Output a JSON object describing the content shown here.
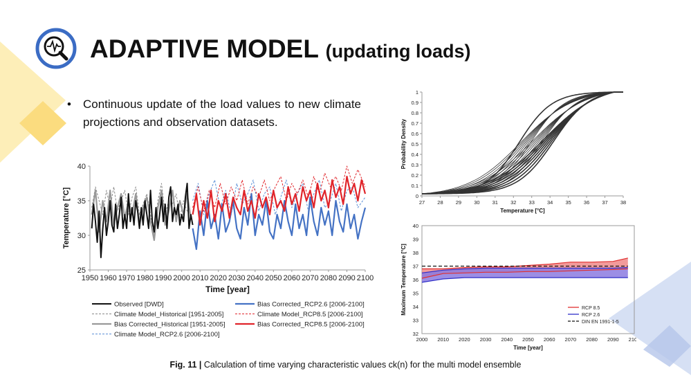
{
  "header": {
    "title": "ADAPTIVE MODEL",
    "subtitle": "(updating loads)",
    "icon": "magnifier-chart-icon",
    "accent": "#3b6cc4"
  },
  "bullet": {
    "marker": "•",
    "text": "Continuous update of the load values to new climate projections and observation datasets."
  },
  "caption": {
    "label": "Fig. 11 |",
    "text": "Calculation of time varying characteristic values ck(n) for the multi model ensemble"
  },
  "chart_data": [
    {
      "type": "line",
      "xlabel": "Time [year]",
      "ylabel": "Temperature [°C]",
      "xlim": [
        1950,
        2100
      ],
      "ylim": [
        25,
        40
      ],
      "xticks": [
        "1950",
        "1960",
        "1970",
        "1980",
        "1990",
        "2000",
        "2010",
        "2020",
        "2030",
        "2040",
        "2050",
        "2060",
        "2070",
        "2080",
        "2090",
        "2100"
      ],
      "yticks": [
        "25",
        "30",
        "35",
        "40"
      ],
      "legend_position": "bottom",
      "series": [
        {
          "name": "Observed [DWD]",
          "color": "#111111",
          "style": "solid",
          "width": 2,
          "x": [
            1951,
            1952,
            1953,
            1954,
            1955,
            1956,
            1957,
            1958,
            1959,
            1960,
            1961,
            1962,
            1963,
            1964,
            1965,
            1966,
            1967,
            1968,
            1969,
            1970,
            1971,
            1972,
            1973,
            1974,
            1975,
            1976,
            1977,
            1978,
            1979,
            1980,
            1981,
            1982,
            1983,
            1984,
            1985,
            1986,
            1987,
            1988,
            1989,
            1990,
            1991,
            1992,
            1993,
            1994,
            1995,
            1996,
            1997,
            1998,
            1999,
            2000,
            2001,
            2002,
            2003,
            2004,
            2005,
            2006
          ],
          "y": [
            31,
            34.5,
            32,
            29,
            33.5,
            26.8,
            31,
            34,
            30,
            32,
            35,
            31.5,
            30.5,
            34.5,
            31,
            33,
            35.5,
            31,
            33,
            31,
            36,
            32,
            34,
            31.5,
            35,
            33.5,
            31,
            34,
            31.5,
            35,
            33,
            31,
            36.5,
            32,
            30.5,
            34,
            31,
            33,
            35.5,
            32,
            34.5,
            31,
            35.5,
            37,
            32,
            34,
            33,
            34.5,
            31.5,
            33,
            32,
            35.5,
            37.5,
            31,
            33,
            31.5
          ]
        },
        {
          "name": "Climate Model_Historical [1951-2005]",
          "color": "#888888",
          "style": "dashed",
          "width": 1,
          "x": [
            1951,
            1953,
            1955,
            1957,
            1959,
            1961,
            1963,
            1965,
            1967,
            1969,
            1971,
            1973,
            1975,
            1977,
            1979,
            1981,
            1983,
            1985,
            1987,
            1989,
            1991,
            1993,
            1995,
            1997,
            1999,
            2001,
            2003,
            2005
          ],
          "y": [
            34,
            37,
            35,
            33,
            36.5,
            34,
            37,
            33.5,
            35,
            36.5,
            33,
            35.5,
            37,
            33,
            34.5,
            36,
            33,
            30,
            35,
            37.5,
            33,
            35,
            34.5,
            36,
            32.5,
            35,
            33.5,
            34
          ]
        },
        {
          "name": "Bias Corrected_Historical [1951-2005]",
          "color": "#999999",
          "style": "solid",
          "width": 2.2,
          "x": [
            1951,
            1953,
            1955,
            1957,
            1959,
            1961,
            1963,
            1965,
            1967,
            1969,
            1971,
            1973,
            1975,
            1977,
            1979,
            1981,
            1983,
            1985,
            1987,
            1989,
            1991,
            1993,
            1995,
            1997,
            1999,
            2001,
            2003,
            2005
          ],
          "y": [
            33,
            36.5,
            30.5,
            35,
            32,
            36.5,
            31.5,
            34,
            36,
            32.5,
            35,
            33,
            36,
            31.5,
            34,
            35.5,
            32,
            29.3,
            34,
            36.5,
            31.5,
            33.5,
            36.5,
            32,
            35,
            33,
            36,
            32.5
          ]
        },
        {
          "name": "Climate Model_RCP2.6 [2006-2100]",
          "color": "#5b8fd6",
          "style": "dashed",
          "width": 1,
          "x": [
            2006,
            2009,
            2012,
            2015,
            2018,
            2021,
            2024,
            2027,
            2030,
            2033,
            2036,
            2039,
            2042,
            2045,
            2048,
            2051,
            2054,
            2057,
            2060,
            2063,
            2066,
            2069,
            2072,
            2075,
            2078,
            2081,
            2084,
            2087,
            2090,
            2093,
            2096,
            2100
          ],
          "y": [
            35,
            37.5,
            33,
            36,
            38,
            34,
            36.5,
            33,
            37.5,
            34.5,
            36,
            38,
            33.5,
            36,
            37,
            33,
            35.5,
            38,
            34,
            36,
            37.5,
            33.5,
            36,
            38,
            34,
            35,
            37.5,
            33.5,
            36.5,
            37,
            34,
            35.5
          ]
        },
        {
          "name": "Bias Corrected_RCP2.6 [2006-2100]",
          "color": "#4472c4",
          "style": "solid",
          "width": 2.2,
          "x": [
            2006,
            2008,
            2010,
            2012,
            2014,
            2016,
            2018,
            2020,
            2022,
            2024,
            2026,
            2028,
            2030,
            2032,
            2034,
            2036,
            2038,
            2040,
            2042,
            2044,
            2046,
            2048,
            2050,
            2052,
            2054,
            2056,
            2058,
            2060,
            2062,
            2064,
            2066,
            2068,
            2070,
            2072,
            2074,
            2076,
            2078,
            2080,
            2082,
            2084,
            2086,
            2088,
            2090,
            2092,
            2094,
            2096,
            2098,
            2100
          ],
          "y": [
            31,
            28,
            33.5,
            30,
            35,
            31,
            33,
            29.5,
            34.5,
            30.5,
            32,
            35,
            31,
            29.5,
            34,
            31.5,
            36,
            30,
            33,
            31.5,
            35,
            30.5,
            29.5,
            33,
            31,
            35,
            32,
            30,
            34.5,
            31,
            33,
            30,
            35.5,
            32,
            30,
            34,
            31.5,
            33.5,
            30,
            35,
            32,
            30.5,
            34.5,
            31,
            33,
            29.5,
            32,
            34
          ]
        },
        {
          "name": "Climate Model_RCP8.5 [2006-2100]",
          "color": "#e0242a",
          "style": "dashed",
          "width": 1,
          "x": [
            2006,
            2009,
            2012,
            2015,
            2018,
            2021,
            2024,
            2027,
            2030,
            2033,
            2036,
            2039,
            2042,
            2045,
            2048,
            2051,
            2054,
            2057,
            2060,
            2063,
            2066,
            2069,
            2072,
            2075,
            2078,
            2081,
            2084,
            2087,
            2090,
            2093,
            2096,
            2100
          ],
          "y": [
            34,
            37,
            33.5,
            36.5,
            34,
            37.5,
            34.5,
            37,
            35,
            38,
            34.5,
            37,
            35.5,
            38,
            35,
            37,
            38.5,
            35,
            37.5,
            36,
            38,
            35.5,
            38.5,
            36,
            39,
            37,
            38.5,
            36.5,
            40,
            37.5,
            39.5,
            37
          ]
        },
        {
          "name": "Bias Corrected_RCP8.5 [2006-2100]",
          "color": "#e0242a",
          "style": "solid",
          "width": 2.2,
          "x": [
            2006,
            2008,
            2010,
            2012,
            2014,
            2016,
            2018,
            2020,
            2022,
            2024,
            2026,
            2028,
            2030,
            2032,
            2034,
            2036,
            2038,
            2040,
            2042,
            2044,
            2046,
            2048,
            2050,
            2052,
            2054,
            2056,
            2058,
            2060,
            2062,
            2064,
            2066,
            2068,
            2070,
            2072,
            2074,
            2076,
            2078,
            2080,
            2082,
            2084,
            2086,
            2088,
            2090,
            2092,
            2094,
            2096,
            2098,
            2100
          ],
          "y": [
            33,
            36,
            31.5,
            35,
            32.5,
            36.5,
            32,
            35,
            33.5,
            36,
            32.5,
            35.5,
            34,
            33,
            36.5,
            33.5,
            35,
            32.5,
            36,
            34,
            35.5,
            33,
            36.5,
            34,
            35,
            33.5,
            37,
            34.5,
            36,
            33.5,
            37,
            35,
            36.5,
            34,
            37.5,
            35,
            36.5,
            34,
            38,
            35.5,
            37,
            34.5,
            38.5,
            36,
            37.5,
            35,
            38,
            36
          ]
        }
      ]
    },
    {
      "type": "line",
      "xlabel": "Temperature [°C]",
      "ylabel": "Probability Density",
      "xlim": [
        27,
        38
      ],
      "ylim": [
        0,
        1
      ],
      "xticks": [
        "27",
        "28",
        "29",
        "30",
        "31",
        "32",
        "33",
        "34",
        "35",
        "36",
        "37",
        "38"
      ],
      "yticks": [
        "0",
        "0.1",
        "0.2",
        "0.3",
        "0.4",
        "0.5",
        "0.6",
        "0.7",
        "0.8",
        "0.9",
        "1"
      ],
      "ensemble": {
        "count": 22,
        "curve": "cumulative",
        "location_range": [
          32.3,
          34.2
        ],
        "scale_range": [
          0.9,
          1.5
        ],
        "color": "#333333"
      }
    },
    {
      "type": "area",
      "xlabel": "Time [year]",
      "ylabel": "Maximum Temperature [°C]",
      "xlim": [
        2000,
        2100
      ],
      "ylim": [
        32,
        40
      ],
      "xticks": [
        "2000",
        "2010",
        "2020",
        "2030",
        "2040",
        "2050",
        "2060",
        "2070",
        "2080",
        "2090",
        "2100"
      ],
      "yticks": [
        "32",
        "33",
        "34",
        "35",
        "36",
        "37",
        "38",
        "39",
        "40"
      ],
      "legend_position": "bottom-right",
      "x": [
        2000,
        2010,
        2020,
        2030,
        2040,
        2050,
        2060,
        2070,
        2080,
        2090,
        2097
      ],
      "series": [
        {
          "name": "RCP 8.5",
          "color": "#e03030",
          "fill": "#f08a8a",
          "upper": [
            36.8,
            36.8,
            36.9,
            36.95,
            36.95,
            37.05,
            37.15,
            37.3,
            37.3,
            37.35,
            37.6
          ],
          "lower": [
            36.1,
            36.45,
            36.5,
            36.55,
            36.55,
            36.6,
            36.6,
            36.65,
            36.7,
            36.75,
            36.8
          ]
        },
        {
          "name": "RCP 2.6",
          "color": "#3030c8",
          "fill": "#8b7ae0",
          "upper": [
            36.5,
            36.7,
            36.8,
            36.85,
            36.85,
            36.85,
            36.85,
            36.85,
            36.85,
            36.85,
            36.9
          ],
          "lower": [
            35.8,
            36.05,
            36.15,
            36.15,
            36.15,
            36.15,
            36.15,
            36.15,
            36.15,
            36.15,
            36.15
          ]
        },
        {
          "name": "DIN EN 1991-1-5",
          "color": "#111111",
          "style": "dashed",
          "x": [
            2000,
            2097
          ],
          "y": [
            37,
            37
          ]
        }
      ]
    }
  ]
}
